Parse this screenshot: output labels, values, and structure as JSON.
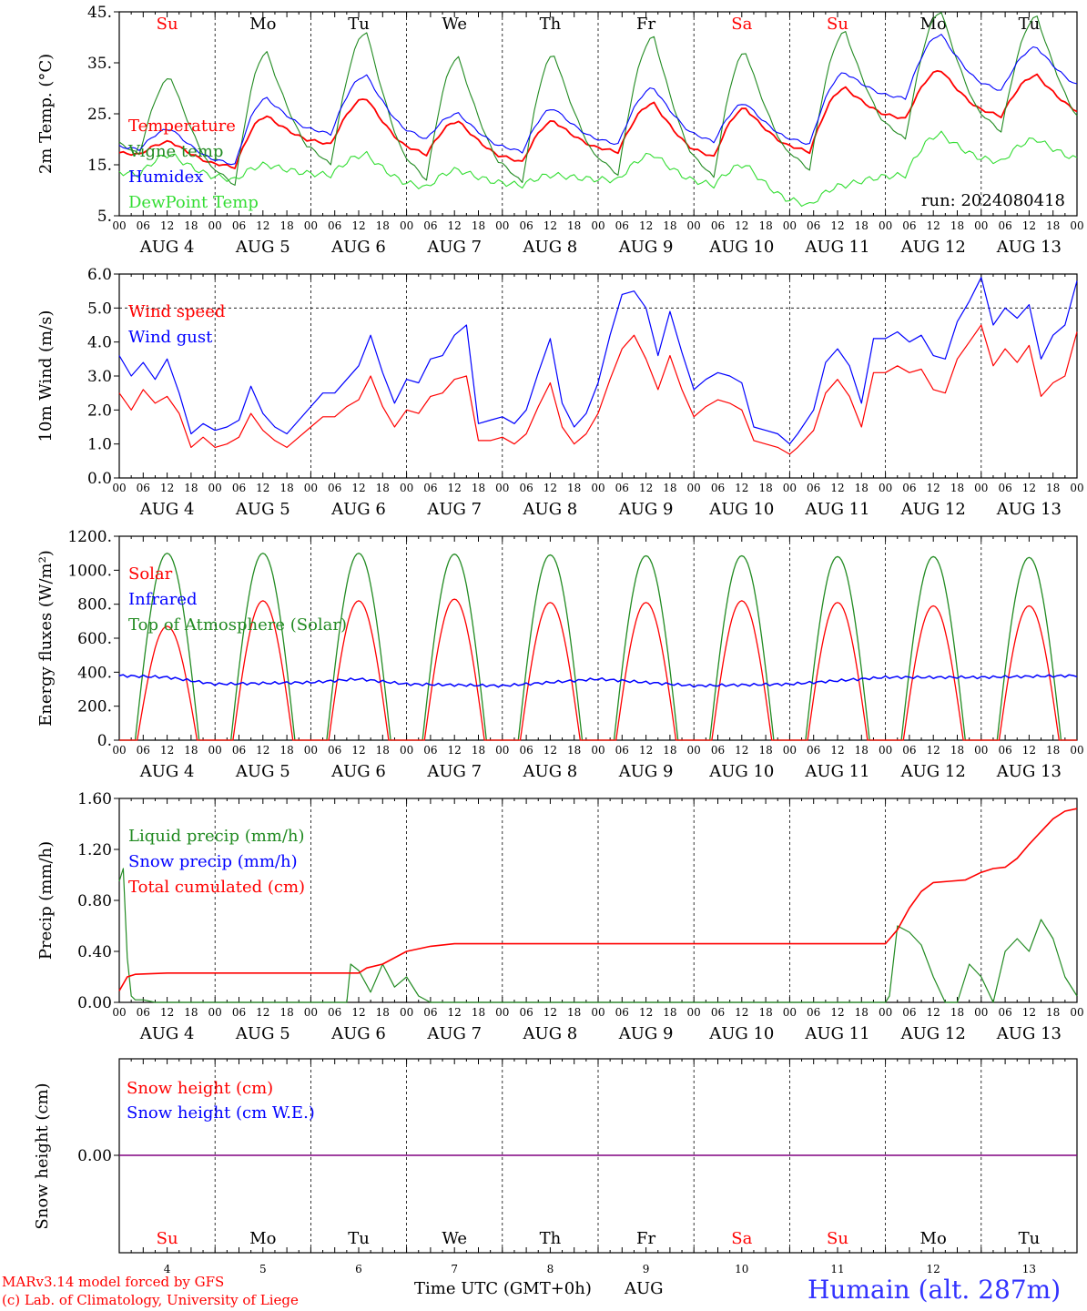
{
  "colors": {
    "red": "#ff0000",
    "green": "#228b22",
    "blue": "#0000ff",
    "lime": "#33dd33",
    "purple": "#800080",
    "title_blue": "#3333ff"
  },
  "days": [
    {
      "abbr": "Su",
      "weekend": true
    },
    {
      "abbr": "Mo",
      "weekend": false
    },
    {
      "abbr": "Tu",
      "weekend": false
    },
    {
      "abbr": "We",
      "weekend": false
    },
    {
      "abbr": "Th",
      "weekend": false
    },
    {
      "abbr": "Fr",
      "weekend": false
    },
    {
      "abbr": "Sa",
      "weekend": true
    },
    {
      "abbr": "Su",
      "weekend": true
    },
    {
      "abbr": "Mo",
      "weekend": false
    },
    {
      "abbr": "Tu",
      "weekend": false
    }
  ],
  "date_labels": [
    "AUG 4",
    "AUG 5",
    "AUG 6",
    "AUG 7",
    "AUG 8",
    "AUG 9",
    "AUG 10",
    "AUG 11",
    "AUG 12",
    "AUG 13"
  ],
  "hour_labels": [
    "00",
    "06",
    "12",
    "18"
  ],
  "bottom_day_numbers": [
    "4",
    "5",
    "6",
    "7",
    "8",
    "9",
    "10",
    "11",
    "12",
    "13"
  ],
  "footer": {
    "credit_line1": "MARv3.14 model forced by GFS",
    "credit_line2": "(c) Lab. of Climatology, University of Liege",
    "xlabel": "Time UTC (GMT+0h)",
    "month": "AUG",
    "station": "Humain (alt. 287m)"
  },
  "chart_data": [
    {
      "type": "line",
      "ylabel": "2m Temp. (°C)",
      "ylim": [
        5,
        45
      ],
      "yticks": [
        "5.",
        "15.",
        "25.",
        "35.",
        "45."
      ],
      "annotation": "run: 2024080418",
      "x": "hours since AUG 4 00 UTC, 0-240",
      "series": [
        {
          "name": "Temperature",
          "color": "red",
          "peak_hours": [
            13,
            13,
            14,
            13,
            13,
            14,
            13,
            14,
            14,
            14
          ],
          "day_max": [
            19.5,
            24.5,
            28,
            23.5,
            23.5,
            27,
            26,
            30,
            33.5,
            32.5
          ],
          "day_min": [
            17,
            14.5,
            19,
            17,
            15.5,
            17.5,
            16.5,
            17.5,
            24,
            24.5
          ]
        },
        {
          "name": "Vigne temp",
          "color": "green",
          "peak_hours": [
            13,
            13,
            14,
            13,
            13,
            14,
            13,
            14,
            14,
            14
          ],
          "day_max": [
            32,
            37,
            41,
            36,
            36.5,
            40,
            37,
            41,
            45,
            44
          ],
          "day_min": [
            17,
            11,
            15,
            12,
            11.5,
            13,
            12.5,
            14,
            20,
            21.5
          ]
        },
        {
          "name": "Humidex",
          "color": "blue",
          "peak_hours": [
            13,
            13,
            14,
            13,
            13,
            14,
            13,
            14,
            14,
            14
          ],
          "day_max": [
            22,
            28,
            32.5,
            25,
            26,
            30,
            27,
            33,
            40.5,
            38
          ],
          "day_min": [
            18,
            15,
            21,
            20,
            17.5,
            19,
            19.5,
            19,
            28,
            29.5
          ]
        },
        {
          "name": "DewPoint Temp",
          "color": "lime",
          "peak_hours": [
            13,
            13,
            14,
            13,
            13,
            14,
            13,
            14,
            14,
            14
          ],
          "day_max": [
            17,
            15,
            17,
            14,
            13,
            17,
            15,
            11,
            21,
            20
          ],
          "day_min": [
            13,
            12,
            13,
            10.5,
            11,
            12,
            11,
            7,
            13,
            15.5
          ]
        }
      ]
    },
    {
      "type": "line",
      "ylabel": "10m Wind (m/s)",
      "ylim": [
        0,
        6
      ],
      "yticks": [
        "0.0",
        "1.0",
        "2.0",
        "3.0",
        "4.0",
        "5.0",
        "6.0"
      ],
      "reference_line": 5,
      "x_hours": [
        0,
        3,
        6,
        9,
        12,
        15,
        18,
        21,
        24,
        27,
        30,
        33,
        36,
        39,
        42,
        45,
        48,
        51,
        54,
        57,
        60,
        63,
        66,
        69,
        72,
        75,
        78,
        81,
        84,
        87,
        90,
        93,
        96,
        99,
        102,
        105,
        108,
        111,
        114,
        117,
        120,
        123,
        126,
        129,
        132,
        135,
        138,
        141,
        144,
        147,
        150,
        153,
        156,
        159,
        162,
        165,
        168,
        170,
        174,
        177,
        180,
        183,
        186,
        189,
        192,
        195,
        198,
        201,
        204,
        207,
        210,
        213,
        216,
        219,
        222,
        225,
        228,
        231,
        234,
        237,
        240
      ],
      "series": [
        {
          "name": "Wind speed",
          "color": "red",
          "values": [
            2.5,
            2.0,
            2.6,
            2.2,
            2.4,
            1.9,
            0.9,
            1.2,
            0.9,
            1.0,
            1.2,
            1.9,
            1.4,
            1.1,
            0.9,
            1.2,
            1.5,
            1.8,
            1.8,
            2.1,
            2.3,
            3.0,
            2.1,
            1.5,
            2.0,
            1.9,
            2.4,
            2.5,
            2.9,
            3.0,
            1.1,
            1.1,
            1.2,
            1.0,
            1.3,
            2.1,
            2.8,
            1.5,
            1.0,
            1.3,
            1.9,
            2.9,
            3.8,
            4.2,
            3.5,
            2.6,
            3.6,
            2.6,
            1.8,
            2.1,
            2.3,
            2.2,
            2.0,
            1.1,
            1.0,
            0.9,
            0.7,
            0.9,
            1.4,
            2.5,
            2.9,
            2.4,
            1.5,
            3.1,
            3.1,
            3.3,
            3.1,
            3.2,
            2.6,
            2.5,
            3.5,
            4.0,
            4.5,
            3.3,
            3.8,
            3.4,
            3.9,
            2.4,
            2.8,
            3.0,
            4.3
          ]
        },
        {
          "name": "Wind gust",
          "color": "blue",
          "values": [
            3.6,
            3.0,
            3.4,
            2.9,
            3.5,
            2.5,
            1.3,
            1.6,
            1.4,
            1.5,
            1.7,
            2.7,
            1.9,
            1.5,
            1.3,
            1.7,
            2.1,
            2.5,
            2.5,
            2.9,
            3.3,
            4.2,
            3.1,
            2.2,
            2.9,
            2.8,
            3.5,
            3.6,
            4.2,
            4.5,
            1.6,
            1.7,
            1.8,
            1.6,
            2.0,
            3.1,
            4.1,
            2.2,
            1.5,
            1.9,
            2.8,
            4.2,
            5.4,
            5.5,
            5.0,
            3.6,
            4.9,
            3.7,
            2.6,
            2.9,
            3.1,
            3.0,
            2.8,
            1.5,
            1.4,
            1.3,
            1.0,
            1.3,
            2.0,
            3.4,
            3.8,
            3.3,
            2.2,
            4.1,
            4.1,
            4.3,
            4.0,
            4.2,
            3.6,
            3.5,
            4.6,
            5.2,
            5.9,
            4.5,
            5.0,
            4.7,
            5.1,
            3.5,
            4.2,
            4.5,
            5.8
          ]
        }
      ]
    },
    {
      "type": "line",
      "ylabel": "Energy fluxes (W/m²)",
      "ylim": [
        0,
        1200
      ],
      "yticks": [
        "0.",
        "200.",
        "400.",
        "600.",
        "800.",
        "1000.",
        "1200."
      ],
      "series": [
        {
          "name": "Solar",
          "color": "red",
          "daylight_hours": [
            4.5,
            19.5
          ],
          "daily_peak": [
            670,
            820,
            820,
            830,
            810,
            810,
            820,
            810,
            790,
            790
          ]
        },
        {
          "name": "Infrared",
          "color": "blue",
          "x_hours": [
            0,
            12,
            24,
            48,
            60,
            72,
            96,
            120,
            144,
            168,
            192,
            216,
            240
          ],
          "values": [
            380,
            370,
            330,
            340,
            360,
            330,
            320,
            360,
            320,
            330,
            370,
            370,
            380
          ]
        },
        {
          "name": "Top of Atmosphere (Solar)",
          "color": "green",
          "daylight_hours": [
            4,
            20
          ],
          "daily_peak": [
            1100,
            1100,
            1100,
            1095,
            1090,
            1085,
            1085,
            1080,
            1080,
            1075
          ]
        }
      ]
    },
    {
      "type": "line",
      "ylabel": "Precip (mm/h)",
      "ylim": [
        0,
        1.6
      ],
      "yticks": [
        "0.00",
        "0.40",
        "0.80",
        "1.20",
        "1.60"
      ],
      "series": [
        {
          "name": "Liquid precip (mm/h)",
          "color": "green",
          "x_hours": [
            0,
            1,
            2,
            3,
            4,
            6,
            9,
            12,
            48,
            57,
            58,
            60,
            63,
            66,
            69,
            72,
            75,
            78,
            192,
            193,
            195,
            198,
            201,
            204,
            207,
            210,
            213,
            216,
            219,
            222,
            225,
            228,
            231,
            234,
            237,
            240
          ],
          "values": [
            0.95,
            1.05,
            0.35,
            0.05,
            0.02,
            0.02,
            0,
            0,
            0,
            0,
            0.3,
            0.25,
            0.08,
            0.3,
            0.12,
            0.2,
            0.05,
            0,
            0,
            0.05,
            0.6,
            0.55,
            0.45,
            0.2,
            0,
            0,
            0.3,
            0.2,
            0,
            0.4,
            0.5,
            0.4,
            0.65,
            0.5,
            0.2,
            0.05
          ]
        },
        {
          "name": "Snow precip (mm/h)",
          "color": "blue",
          "values": []
        },
        {
          "name": "Total cumulated (cm)",
          "color": "red",
          "x_hours": [
            0,
            2,
            4,
            12,
            24,
            60,
            62,
            66,
            72,
            78,
            84,
            192,
            195,
            198,
            201,
            204,
            208,
            212,
            216,
            219,
            222,
            225,
            228,
            231,
            234,
            237,
            240
          ],
          "values": [
            0.09,
            0.2,
            0.22,
            0.23,
            0.23,
            0.23,
            0.27,
            0.3,
            0.4,
            0.44,
            0.46,
            0.46,
            0.57,
            0.74,
            0.87,
            0.94,
            0.95,
            0.96,
            1.02,
            1.05,
            1.06,
            1.13,
            1.24,
            1.34,
            1.44,
            1.5,
            1.52
          ]
        }
      ]
    },
    {
      "type": "line",
      "ylabel": "Snow height (cm)",
      "ytick": "0.00",
      "series": [
        {
          "name": "Snow height (cm)",
          "color": "red",
          "values": [
            0,
            0
          ]
        },
        {
          "name": "Snow height (cm W.E.)",
          "color": "blue",
          "values": [
            0,
            0
          ]
        }
      ]
    }
  ]
}
